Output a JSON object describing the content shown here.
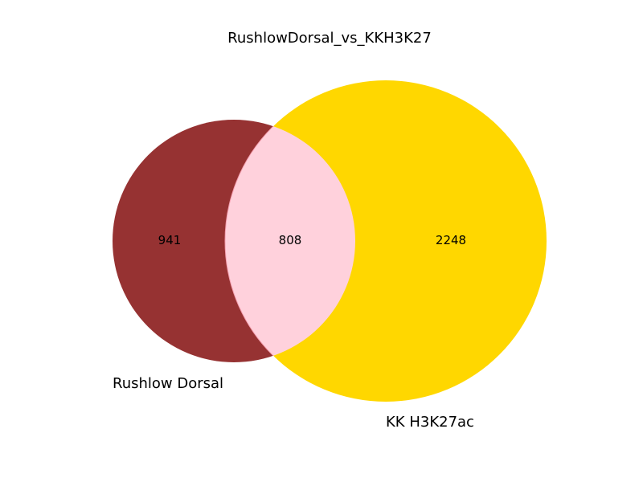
{
  "chart_data": {
    "type": "venn",
    "title": "RushlowDorsal_vs_KKH3K27",
    "sets": [
      {
        "name": "Rushlow Dorsal",
        "only_count": "941",
        "color": "#963232"
      },
      {
        "name": "KK H3K27ac",
        "only_count": "2248",
        "color": "#ffd700"
      }
    ],
    "intersection": {
      "count": "808",
      "color": "#ffd1dc"
    }
  }
}
